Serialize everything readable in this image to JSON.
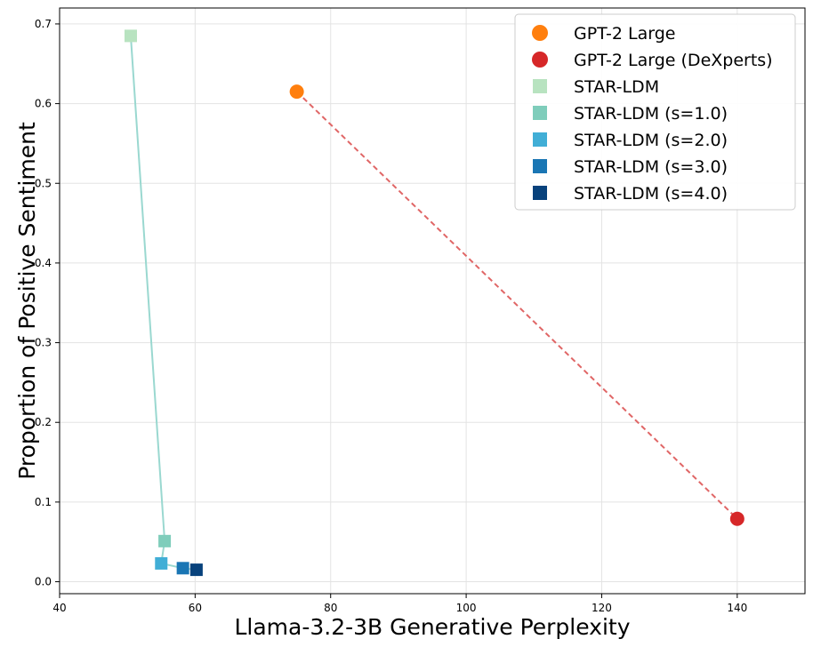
{
  "chart_data": {
    "type": "scatter",
    "title": "",
    "xlabel": "Llama-3.2-3B Generative Perplexity",
    "ylabel": "Proportion of Positive Sentiment",
    "xlim": [
      40,
      150
    ],
    "ylim": [
      -0.015,
      0.72
    ],
    "xticks": [
      40,
      60,
      80,
      100,
      120,
      140
    ],
    "yticks": [
      0.0,
      0.1,
      0.2,
      0.3,
      0.4,
      0.5,
      0.6,
      0.7
    ],
    "grid": true,
    "legend_position": "top-right",
    "series": [
      {
        "name": "GPT-2 Large",
        "marker": "circle",
        "color": "#ff7f0e",
        "points": [
          [
            75.0,
            0.615
          ]
        ]
      },
      {
        "name": "GPT-2 Large (DeXperts)",
        "marker": "circle",
        "color": "#d62728",
        "points": [
          [
            140.0,
            0.079
          ]
        ]
      },
      {
        "name": "STAR-LDM",
        "marker": "square",
        "color": "#b8e3c0",
        "points": [
          [
            50.5,
            0.685
          ]
        ]
      },
      {
        "name": "STAR-LDM (s=1.0)",
        "marker": "square",
        "color": "#7fcdbb",
        "points": [
          [
            55.5,
            0.051
          ]
        ]
      },
      {
        "name": "STAR-LDM (s=2.0)",
        "marker": "square",
        "color": "#41aed6",
        "points": [
          [
            55.0,
            0.023
          ]
        ]
      },
      {
        "name": "STAR-LDM (s=3.0)",
        "marker": "square",
        "color": "#1a76b4",
        "points": [
          [
            58.2,
            0.017
          ]
        ]
      },
      {
        "name": "STAR-LDM (s=4.0)",
        "marker": "square",
        "color": "#08427c",
        "points": [
          [
            60.2,
            0.015
          ]
        ]
      }
    ],
    "connectors": [
      {
        "style": "dashed",
        "color": "#e06666",
        "points": [
          [
            75.0,
            0.615
          ],
          [
            140.0,
            0.079
          ]
        ]
      },
      {
        "style": "solid",
        "color": "#9ad8d0",
        "points": [
          [
            50.5,
            0.685
          ],
          [
            55.5,
            0.051
          ],
          [
            55.0,
            0.023
          ],
          [
            58.2,
            0.017
          ],
          [
            60.2,
            0.015
          ]
        ]
      }
    ]
  }
}
